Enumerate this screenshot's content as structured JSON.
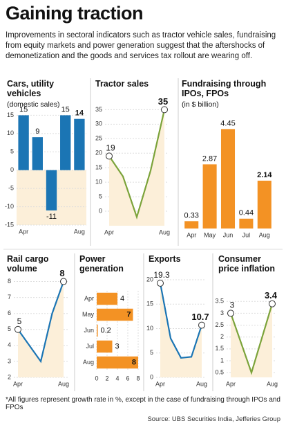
{
  "title": "Gaining traction",
  "subtitle": "Improvements in sectoral indicators such as tractor vehicle sales, fundraising from equity markets and power generation suggest that the aftershocks of demonetization and the goods and services tax rollout are wearing off.",
  "chart_data": [
    {
      "type": "bar",
      "title": "Cars, utility vehicles",
      "subtitle": "(domestic sales)",
      "categories": [
        "Apr",
        null,
        null,
        null,
        "Aug"
      ],
      "values": [
        15,
        9,
        -11,
        15,
        14
      ],
      "color": "#1b75b4",
      "ylim": [
        -15,
        20
      ],
      "yticks": [
        -15,
        -10,
        -5,
        0,
        5,
        10,
        15
      ],
      "grid": true
    },
    {
      "type": "line",
      "title": "Tractor sales",
      "categories": [
        "Apr",
        null,
        null,
        null,
        "Aug"
      ],
      "values": [
        19,
        12,
        -2,
        14,
        35
      ],
      "color": "#7ba33a",
      "ylim": [
        -5,
        37
      ],
      "yticks": [
        0,
        5,
        10,
        15,
        20,
        25,
        30,
        35
      ],
      "grid": true
    },
    {
      "type": "bar",
      "title": "Fundraising through IPOs, FPOs",
      "subtitle": "(in $ billion)",
      "categories": [
        "Apr",
        "May",
        "Jun",
        "Jul",
        "Aug"
      ],
      "values": [
        0.33,
        2.87,
        4.45,
        0.44,
        2.14
      ],
      "color": "#f39224"
    },
    {
      "type": "line",
      "title": "Rail cargo volume",
      "categories": [
        "Apr",
        null,
        null,
        null,
        "Aug"
      ],
      "values": [
        5,
        4,
        3,
        6,
        8
      ],
      "color": "#1b75b4",
      "ylim": [
        2,
        8.5
      ],
      "yticks": [
        2,
        3,
        4,
        5,
        6,
        7,
        8
      ],
      "grid": true
    },
    {
      "type": "hbar",
      "title": "Power generation",
      "categories": [
        "Apr",
        "May",
        "Jun",
        "Jul",
        "Aug"
      ],
      "values": [
        4,
        7,
        0.2,
        3,
        8
      ],
      "color": "#f39224",
      "xlim": [
        0,
        8
      ],
      "xticks": [
        0,
        2,
        4,
        6,
        8
      ],
      "grid": true
    },
    {
      "type": "line",
      "title": "Exports",
      "categories": [
        "Apr",
        null,
        null,
        null,
        "Aug"
      ],
      "values": [
        19.3,
        8,
        4,
        4.2,
        10.7
      ],
      "color": "#1b75b4",
      "ylim": [
        0,
        21
      ],
      "yticks": [
        0,
        5,
        10,
        15,
        20
      ],
      "grid": true
    },
    {
      "type": "line",
      "title": "Consumer price inflation",
      "categories": [
        "Apr",
        null,
        null,
        null,
        "Aug"
      ],
      "values": [
        3,
        1.75,
        0.5,
        1.95,
        3.4
      ],
      "color": "#7ba33a",
      "ylim": [
        0.3,
        3.8
      ],
      "yticks": [
        0.5,
        1,
        1.5,
        2,
        2.5,
        3,
        3.5
      ],
      "grid": true
    }
  ],
  "footnote": "*All figures represent growth rate in %, except in the case of fundraising through IPOs and FPOs",
  "source": "Source: UBS Securities India, Jefferies Group"
}
